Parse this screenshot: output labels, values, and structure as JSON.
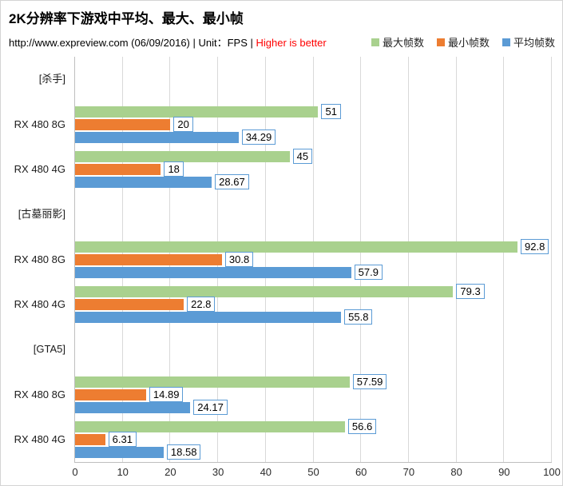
{
  "header": {
    "title": "2K分辨率下游戏中平均、最大、最小帧",
    "subtitle_prefix": "http://www.expreview.com (06/09/2016) | Unit：FPS | ",
    "subtitle_highlight": "Higher is better"
  },
  "colors": {
    "highlight_red": "#ff0000",
    "value_label_border": "#5b9bd5",
    "grid_color": "#d9d9d9",
    "axis_color": "#bfbfbf"
  },
  "chart_data": {
    "type": "bar",
    "orientation": "horizontal",
    "title": "2K分辨率下游戏中平均、最大、最小帧",
    "unit": "FPS",
    "series": [
      {
        "key": "max",
        "name": "最大帧数",
        "color": "#a9d18e"
      },
      {
        "key": "min",
        "name": "最小帧数",
        "color": "#ed7d31"
      },
      {
        "key": "avg",
        "name": "平均帧数",
        "color": "#5b9bd5"
      }
    ],
    "groups": [
      {
        "label": "[杀手]",
        "rows": [
          {
            "label": "RX 480 8G",
            "values": [
              51,
              20,
              34.29
            ]
          },
          {
            "label": "RX 480 4G",
            "values": [
              45,
              18,
              28.67
            ]
          }
        ]
      },
      {
        "label": "[古墓丽影]",
        "rows": [
          {
            "label": "RX 480 8G",
            "values": [
              92.8,
              30.8,
              57.9
            ]
          },
          {
            "label": "RX 480 4G",
            "values": [
              79.3,
              22.8,
              55.8
            ]
          }
        ]
      },
      {
        "label": "[GTA5]",
        "rows": [
          {
            "label": "RX 480 8G",
            "values": [
              57.59,
              14.89,
              24.17
            ]
          },
          {
            "label": "RX 480 4G",
            "values": [
              56.6,
              6.31,
              18.58
            ]
          }
        ]
      }
    ],
    "xlim": [
      0,
      100
    ],
    "x_ticks": [
      0,
      10,
      20,
      30,
      40,
      50,
      60,
      70,
      80,
      90,
      100
    ],
    "grid": true,
    "legend_position": "top-right",
    "value_labels": true
  }
}
